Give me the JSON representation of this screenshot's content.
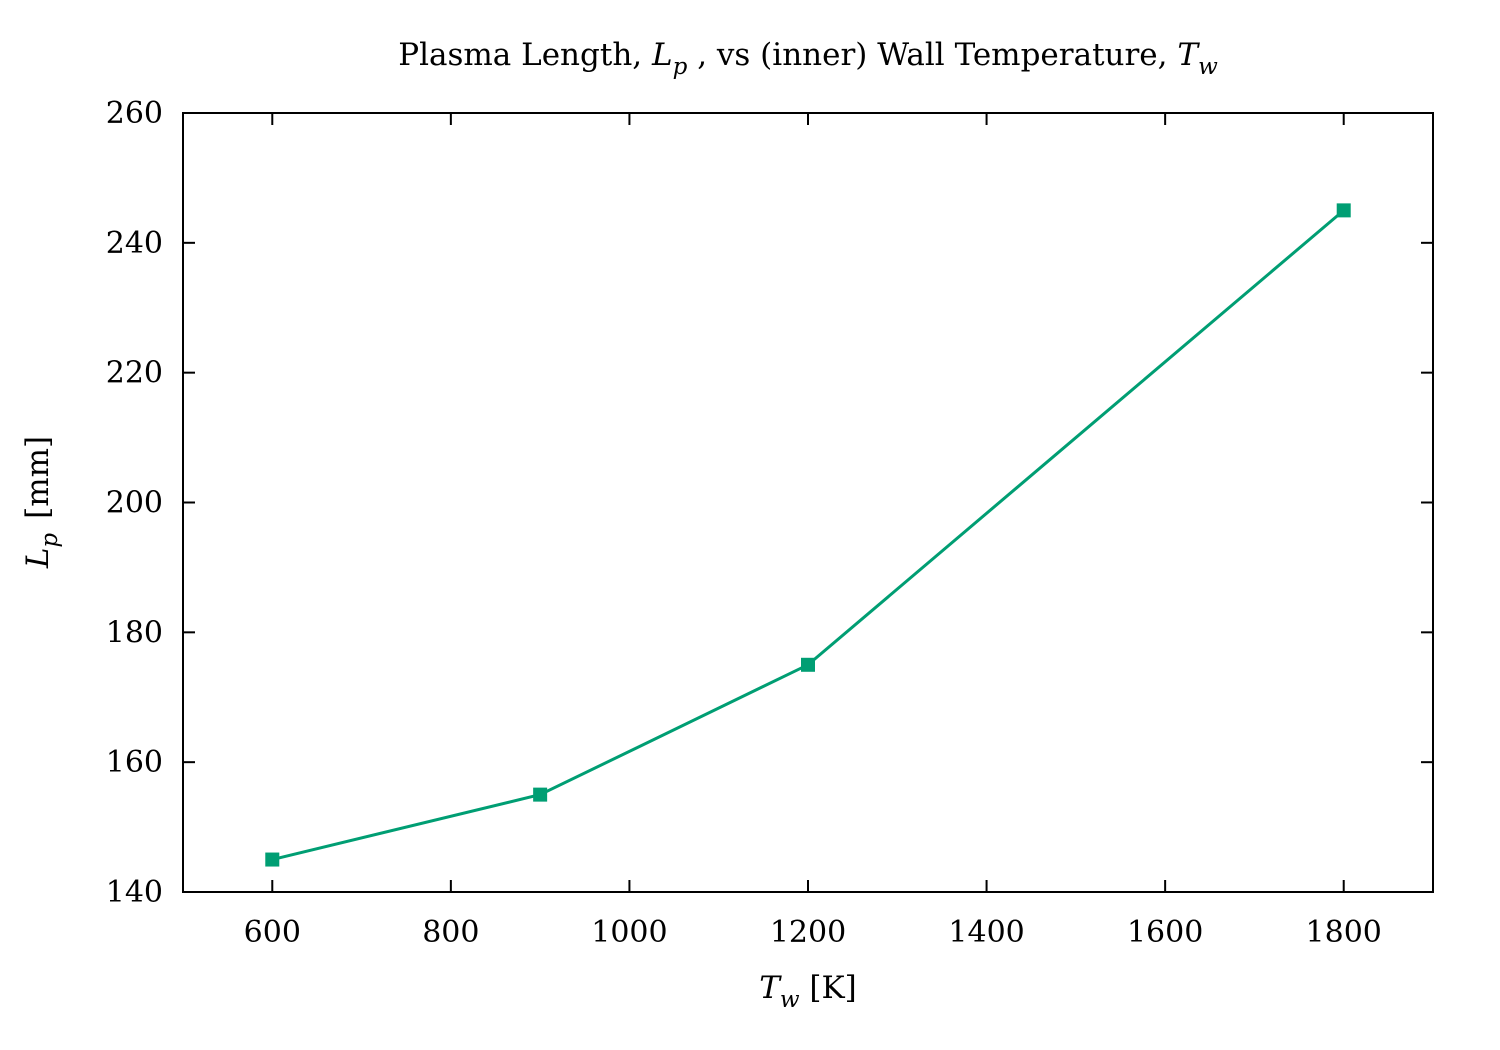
{
  "chart_data": {
    "type": "line",
    "title": {
      "part1": "Plasma Length, ",
      "sym1": "L",
      "sub1": "p",
      "part2": " , vs (inner) Wall Temperature, ",
      "sym2": "T",
      "sub2": "w"
    },
    "xlabel": {
      "sym": "T",
      "sub": "w",
      "unit": " [K]"
    },
    "ylabel": {
      "sym": "L",
      "sub": "p",
      "unit": "[mm]"
    },
    "xlim": [
      500,
      1900
    ],
    "ylim": [
      140,
      260
    ],
    "xticks": [
      600,
      800,
      1000,
      1200,
      1400,
      1600,
      1800
    ],
    "yticks": [
      140,
      160,
      180,
      200,
      220,
      240,
      260
    ],
    "grid": false,
    "series": [
      {
        "color": "#009e73",
        "marker": "square",
        "x": [
          600,
          900,
          1200,
          1800
        ],
        "y": [
          145,
          155,
          175,
          245
        ]
      }
    ]
  }
}
